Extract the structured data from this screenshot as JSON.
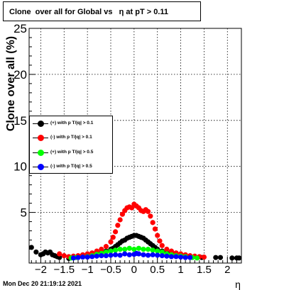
{
  "title": "Clone  over all for Global vs   η at pT > 0.11",
  "timestamp": "Mon Dec 20 21:19:12 2021",
  "chart_data": {
    "type": "scatter",
    "xlabel": "η",
    "ylabel": "Clone  over all (%)",
    "xlim": [
      -2.25,
      2.3
    ],
    "ylim": [
      -0.5,
      25
    ],
    "xticks": [
      -2,
      -1.5,
      -1,
      -0.5,
      0,
      0.5,
      1,
      1.5,
      2
    ],
    "xtick_labels": [
      "−2",
      "−1.5",
      "−1",
      "−0.5",
      "0",
      "0.5",
      "1",
      "1.5",
      "2"
    ],
    "yticks": [
      5,
      10,
      15,
      20,
      25
    ],
    "ytick_labels": [
      "5",
      "10",
      "15",
      "20",
      "25"
    ],
    "grid": true,
    "legend_position": "left",
    "series": [
      {
        "name": "(+) with p T/|q| > 0.1",
        "color": "#000000",
        "points": [
          [
            -2.2,
            1.2
          ],
          [
            -2.1,
            0.7
          ],
          [
            -2.0,
            0.4
          ],
          [
            -1.95,
            0.5
          ],
          [
            -1.9,
            0.7
          ],
          [
            -1.85,
            0.6
          ],
          [
            -1.8,
            0.7
          ],
          [
            -1.75,
            0.4
          ],
          [
            -1.7,
            0.3
          ],
          [
            -1.65,
            0.2
          ],
          [
            -1.6,
            0.1
          ],
          [
            -1.4,
            0.0
          ],
          [
            -1.3,
            0.1
          ],
          [
            -1.2,
            0.2
          ],
          [
            -1.1,
            0.25
          ],
          [
            -1.0,
            0.3
          ],
          [
            -0.9,
            0.4
          ],
          [
            -0.8,
            0.5
          ],
          [
            -0.7,
            0.6
          ],
          [
            -0.6,
            0.8
          ],
          [
            -0.5,
            1.0
          ],
          [
            -0.45,
            1.1
          ],
          [
            -0.4,
            1.3
          ],
          [
            -0.35,
            1.5
          ],
          [
            -0.3,
            1.7
          ],
          [
            -0.25,
            1.9
          ],
          [
            -0.2,
            2.0
          ],
          [
            -0.15,
            2.2
          ],
          [
            -0.1,
            2.3
          ],
          [
            -0.05,
            2.4
          ],
          [
            0.0,
            2.5
          ],
          [
            0.05,
            2.5
          ],
          [
            0.1,
            2.4
          ],
          [
            0.15,
            2.3
          ],
          [
            0.2,
            2.2
          ],
          [
            0.25,
            2.0
          ],
          [
            0.3,
            1.8
          ],
          [
            0.35,
            1.6
          ],
          [
            0.4,
            1.4
          ],
          [
            0.45,
            1.2
          ],
          [
            0.5,
            1.0
          ],
          [
            0.6,
            0.8
          ],
          [
            0.7,
            0.6
          ],
          [
            0.8,
            0.5
          ],
          [
            0.9,
            0.4
          ],
          [
            1.0,
            0.3
          ],
          [
            1.1,
            0.2
          ],
          [
            1.2,
            0.15
          ],
          [
            1.45,
            0.1
          ],
          [
            1.75,
            0.1
          ],
          [
            1.85,
            0.1
          ],
          [
            2.1,
            0.05
          ],
          [
            2.2,
            0.05
          ],
          [
            2.25,
            0.05
          ]
        ]
      },
      {
        "name": "(-) with p T/|q| > 0.1",
        "color": "#ff0000",
        "points": [
          [
            -1.6,
            0.5
          ],
          [
            -1.5,
            0.3
          ],
          [
            -1.4,
            0.2
          ],
          [
            -1.3,
            0.25
          ],
          [
            -1.2,
            0.3
          ],
          [
            -1.1,
            0.4
          ],
          [
            -1.0,
            0.5
          ],
          [
            -0.9,
            0.6
          ],
          [
            -0.8,
            0.8
          ],
          [
            -0.7,
            1.0
          ],
          [
            -0.6,
            1.3
          ],
          [
            -0.5,
            1.8
          ],
          [
            -0.45,
            2.3
          ],
          [
            -0.4,
            2.9
          ],
          [
            -0.35,
            3.6
          ],
          [
            -0.3,
            4.2
          ],
          [
            -0.25,
            4.8
          ],
          [
            -0.2,
            5.2
          ],
          [
            -0.15,
            5.5
          ],
          [
            -0.1,
            5.6
          ],
          [
            -0.05,
            5.5
          ],
          [
            0.0,
            5.9
          ],
          [
            0.05,
            5.7
          ],
          [
            0.1,
            5.5
          ],
          [
            0.15,
            5.2
          ],
          [
            0.2,
            5.1
          ],
          [
            0.25,
            5.3
          ],
          [
            0.3,
            5.1
          ],
          [
            0.35,
            4.6
          ],
          [
            0.4,
            3.9
          ],
          [
            0.45,
            3.2
          ],
          [
            0.5,
            2.5
          ],
          [
            0.55,
            1.9
          ],
          [
            0.6,
            1.4
          ],
          [
            0.7,
            1.0
          ],
          [
            0.8,
            0.8
          ],
          [
            0.9,
            0.6
          ],
          [
            1.0,
            0.5
          ],
          [
            1.1,
            0.4
          ],
          [
            1.2,
            0.3
          ],
          [
            1.3,
            0.25
          ],
          [
            1.4,
            0.2
          ],
          [
            1.5,
            0.15
          ]
        ]
      },
      {
        "name": "(+) with p T/|q| > 0.5",
        "color": "#00ff00",
        "points": [
          [
            -1.35,
            0.05
          ],
          [
            -1.25,
            0.1
          ],
          [
            -1.1,
            0.15
          ],
          [
            -1.0,
            0.2
          ],
          [
            -0.9,
            0.3
          ],
          [
            -0.8,
            0.45
          ],
          [
            -0.7,
            0.55
          ],
          [
            -0.6,
            0.7
          ],
          [
            -0.5,
            0.8
          ],
          [
            -0.4,
            0.9
          ],
          [
            -0.3,
            1.0
          ],
          [
            -0.2,
            1.0
          ],
          [
            -0.1,
            1.1
          ],
          [
            0.0,
            1.0
          ],
          [
            0.1,
            1.1
          ],
          [
            0.2,
            1.0
          ],
          [
            0.3,
            1.0
          ],
          [
            0.4,
            0.9
          ],
          [
            0.5,
            0.8
          ],
          [
            0.6,
            0.7
          ],
          [
            0.7,
            0.5
          ],
          [
            0.8,
            0.4
          ],
          [
            0.9,
            0.3
          ],
          [
            1.0,
            0.25
          ],
          [
            1.1,
            0.2
          ],
          [
            1.25,
            0.1
          ],
          [
            1.35,
            0.05
          ]
        ]
      },
      {
        "name": "(-) with p T/|q| > 0.5",
        "color": "#0000ff",
        "points": [
          [
            -1.3,
            0.05
          ],
          [
            -1.2,
            0.1
          ],
          [
            -1.1,
            0.15
          ],
          [
            -1.0,
            0.15
          ],
          [
            -0.9,
            0.2
          ],
          [
            -0.8,
            0.25
          ],
          [
            -0.7,
            0.3
          ],
          [
            -0.6,
            0.3
          ],
          [
            -0.5,
            0.35
          ],
          [
            -0.4,
            0.4
          ],
          [
            -0.3,
            0.35
          ],
          [
            -0.2,
            0.5
          ],
          [
            -0.1,
            0.4
          ],
          [
            0.0,
            0.45
          ],
          [
            0.05,
            0.55
          ],
          [
            0.1,
            0.5
          ],
          [
            0.2,
            0.4
          ],
          [
            0.3,
            0.35
          ],
          [
            0.4,
            0.4
          ],
          [
            0.5,
            0.35
          ],
          [
            0.6,
            0.3
          ],
          [
            0.7,
            0.25
          ],
          [
            0.8,
            0.2
          ],
          [
            0.9,
            0.2
          ],
          [
            1.0,
            0.15
          ],
          [
            1.1,
            0.1
          ],
          [
            1.2,
            0.1
          ]
        ]
      }
    ]
  }
}
